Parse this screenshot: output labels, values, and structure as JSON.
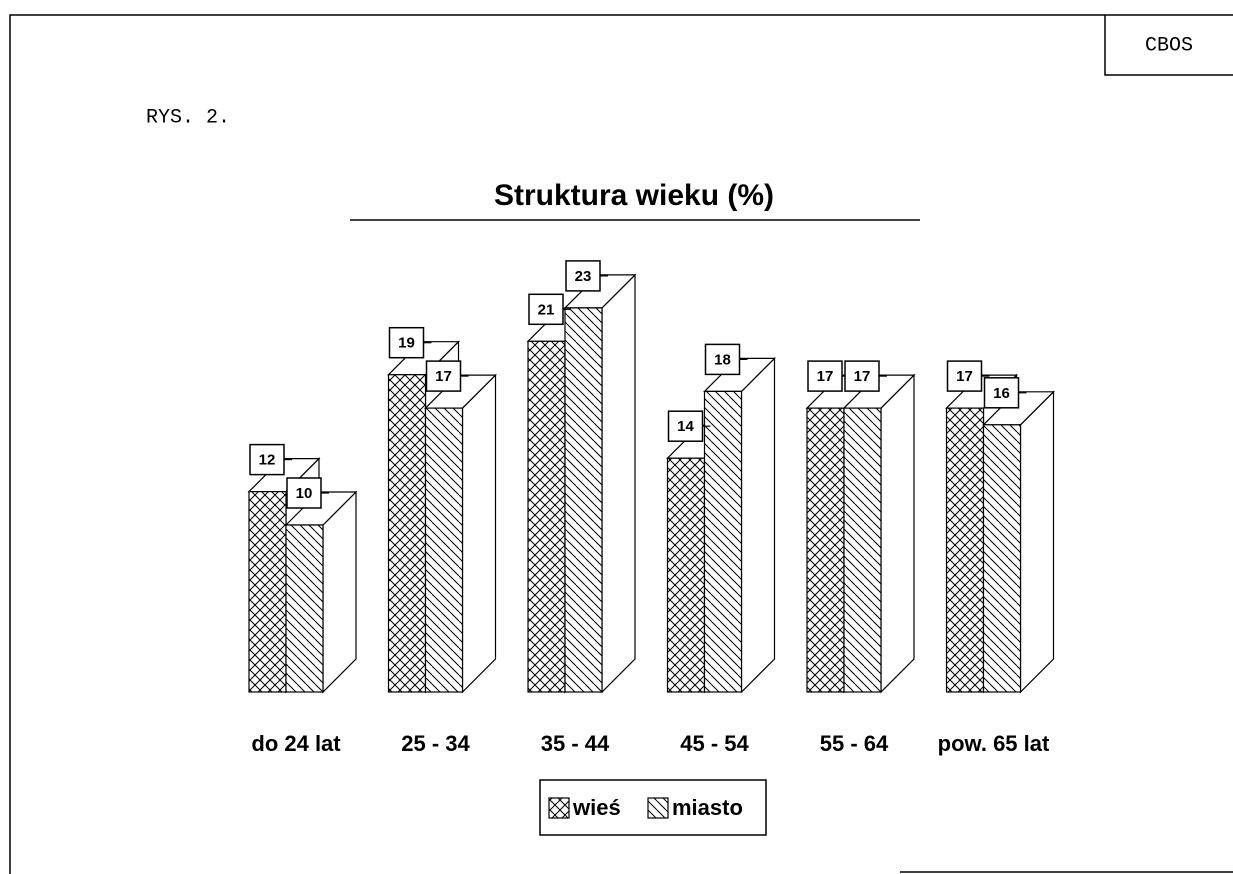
{
  "chart_data": {
    "type": "bar3d",
    "title": "Struktura wieku (%)",
    "figure_label": "RYS. 2.",
    "source": "CBOS",
    "categories": [
      "do 24 lat",
      "25 - 34",
      "35 - 44",
      "45 - 54",
      "55 - 64",
      "pow. 65 lat"
    ],
    "series": [
      {
        "name": "wieś",
        "color": "crosshatch",
        "values": [
          12,
          19,
          21,
          14,
          17,
          17
        ]
      },
      {
        "name": "miasto",
        "color": "diagonal",
        "values": [
          10,
          17,
          23,
          18,
          17,
          16
        ]
      }
    ],
    "legend": "bottom"
  }
}
